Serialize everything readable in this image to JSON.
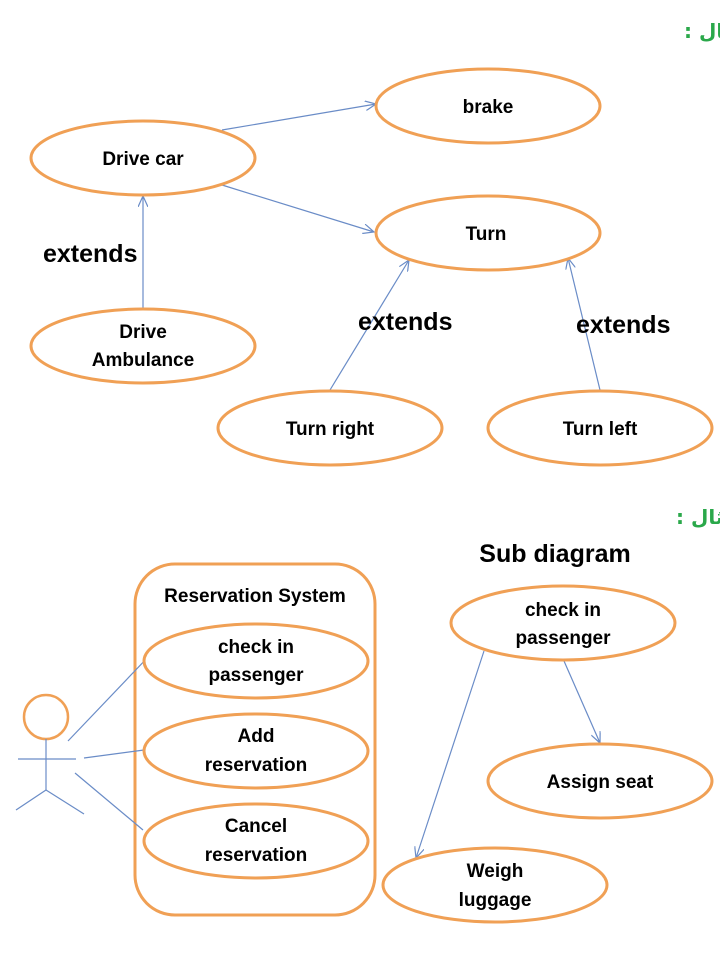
{
  "example_labels": [
    "مثال :",
    "مثال :"
  ],
  "diagram1": {
    "use_cases": {
      "drive_car": "Drive car",
      "brake": "brake",
      "turn": "Turn",
      "drive_ambulance": [
        "Drive",
        "Ambulance"
      ],
      "turn_right": "Turn right",
      "turn_left": "Turn left"
    },
    "extends_labels": [
      "extends",
      "extends",
      "extends"
    ]
  },
  "diagram2": {
    "system_title": "Reservation System",
    "use_cases": {
      "check_in": [
        "check in",
        "passenger"
      ],
      "add_reservation": [
        "Add",
        "reservation"
      ],
      "cancel_reservation": [
        "Cancel",
        "reservation"
      ]
    }
  },
  "sub_diagram": {
    "title": "Sub diagram",
    "use_cases": {
      "check_in": [
        "check in",
        "passenger"
      ],
      "assign_seat": "Assign seat",
      "weigh_luggage": [
        "Weigh",
        "luggage"
      ]
    }
  },
  "colors": {
    "ellipse_stroke": "#f0a055",
    "connector": "#6a8cc7",
    "arabic_label": "#2aa84a"
  }
}
